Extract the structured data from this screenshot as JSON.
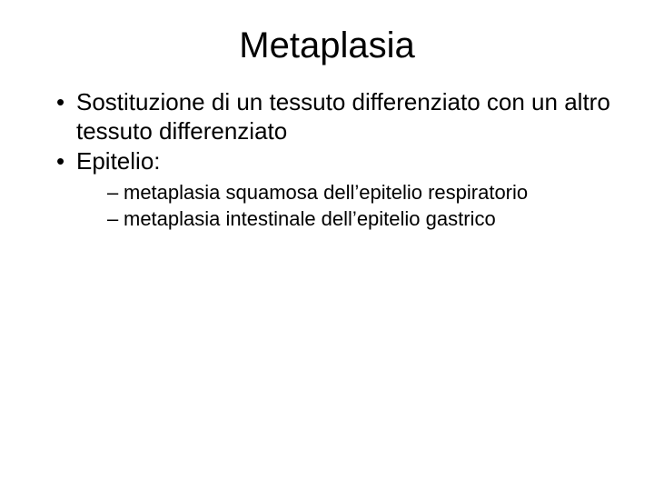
{
  "slide": {
    "title": "Metaplasia",
    "title_fontsize": 40,
    "title_align": "center",
    "bullets": [
      {
        "text": "Sostituzione di un tessuto differenziato con un altro tessuto differenziato",
        "sub": []
      },
      {
        "text": "Epitelio:",
        "sub": [
          "metaplasia squamosa dell’epitelio respiratorio",
          "metaplasia intestinale dell’epitelio gastrico"
        ]
      }
    ],
    "level1_fontsize": 26,
    "level2_fontsize": 22,
    "background_color": "#ffffff",
    "text_color": "#000000",
    "font_family": "Comic Sans MS"
  }
}
